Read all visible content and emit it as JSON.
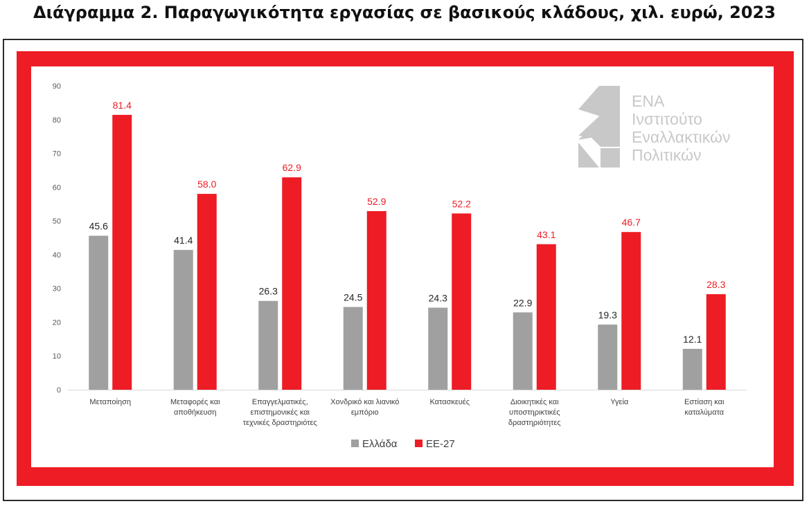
{
  "page": {
    "title": "Διάγραμμα 2. Παραγωγικότητα εργασίας σε βασικούς κλάδους, χιλ. ευρώ, 2023"
  },
  "logo": {
    "lines": [
      "ΕΝΑ",
      "Ινστιτούτο",
      "Εναλλακτικών",
      "Πολιτικών"
    ],
    "color": "#c8c8c8"
  },
  "colors": {
    "greece": "#a0a0a0",
    "eu27": "#ee1c25",
    "frame": "#ee1c25"
  },
  "chart_data": {
    "type": "bar",
    "title": "Διάγραμμα 2. Παραγωγικότητα εργασίας σε βασικούς κλάδους, χιλ. ευρώ, 2023",
    "xlabel": "",
    "ylabel": "",
    "ylim": [
      0,
      90
    ],
    "yticks": [
      0,
      10,
      20,
      30,
      40,
      50,
      60,
      70,
      80,
      90
    ],
    "grid": false,
    "legend_position": "bottom",
    "categories": [
      [
        "Μεταποίηση"
      ],
      [
        "Μεταφορές και",
        "αποθήκευση"
      ],
      [
        "Επαγγελματικές,",
        "επιστημονικές και",
        "τεχνικές δραστηριότες"
      ],
      [
        "Χονδρικό και λιανικό",
        "εμπόριο"
      ],
      [
        "Κατασκευές"
      ],
      [
        "Διοικητικές και",
        "υποστηρικτικές",
        "δραστηριότητες"
      ],
      [
        "Υγεία"
      ],
      [
        "Εστίαση και",
        "καταλύματα"
      ]
    ],
    "series": [
      {
        "name": "Ελλάδα",
        "color": "#a0a0a0",
        "label_color": "#262626",
        "values": [
          45.6,
          41.4,
          26.3,
          24.5,
          24.3,
          22.9,
          19.3,
          12.1
        ]
      },
      {
        "name": "ΕΕ-27",
        "color": "#ee1c25",
        "label_color": "#ee1c25",
        "values": [
          81.4,
          58.0,
          62.9,
          52.9,
          52.2,
          43.1,
          46.7,
          28.3
        ]
      }
    ]
  }
}
